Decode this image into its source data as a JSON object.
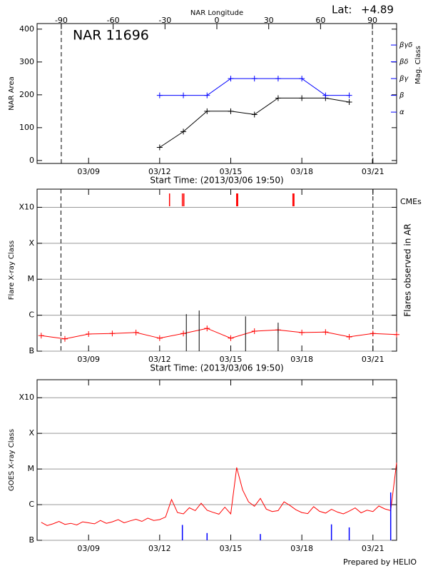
{
  "chart_data": [
    {
      "type": "line",
      "title": "NAR 11696",
      "lat_label": "Lat:",
      "lat_value": "+4.89",
      "x2label": "NAR Longitude",
      "xlabel": "Start Time: (2013/03/06 19:50)",
      "ylabel": "NAR Area",
      "y2label": "Mag. Class",
      "xlim": [
        "03/06 19:50",
        "03/22"
      ],
      "xticks": [
        "03/09",
        "03/12",
        "03/15",
        "03/18",
        "03/21"
      ],
      "x2lim": [
        -104,
        104
      ],
      "x2ticks": [
        -90,
        -60,
        -30,
        0,
        30,
        60,
        90
      ],
      "limb_lines": [
        -90,
        90
      ],
      "ylim": [
        -9,
        417
      ],
      "yticks": [
        0,
        100,
        200,
        300,
        400
      ],
      "y2lim": [
        -2.06,
        6.28
      ],
      "y2ticks": [
        {
          "value": 1,
          "label": "α"
        },
        {
          "value": 2,
          "label": "β"
        },
        {
          "value": 3,
          "label": "βγ"
        },
        {
          "value": 4,
          "label": "βδ"
        },
        {
          "value": 5,
          "label": "βγδ"
        }
      ],
      "y2color": "#0000ff",
      "x": [
        "03/12",
        "03/13",
        "03/14",
        "03/15",
        "03/16",
        "03/17",
        "03/18",
        "03/19",
        "03/20"
      ],
      "series": [
        {
          "color": "#000000",
          "marker": "+",
          "values": [
            40,
            88,
            150,
            150,
            140,
            190,
            190,
            190,
            178
          ]
        },
        {
          "color": "#0000ff",
          "marker": "+",
          "axis": "y2",
          "values": [
            2,
            2,
            2,
            3,
            3,
            3,
            3,
            2,
            2
          ]
        }
      ]
    },
    {
      "type": "event",
      "xlabel": "Start Time: (2013/03/06 19:50)",
      "ylabel": "Flare X-ray Class",
      "y2label": "Flares observed in AR",
      "cme_label": "CMEs",
      "xlim": [
        "03/06 19:50",
        "03/22"
      ],
      "xticks": [
        "03/09",
        "03/12",
        "03/15",
        "03/18",
        "03/21"
      ],
      "limb_lines": [
        "03/07 20:00",
        "03/21 00:00"
      ],
      "log_scale": true,
      "grid": true,
      "ylim": [
        1e-07,
        0.0032
      ],
      "yticks": [
        {
          "value": 1e-07,
          "label": "B"
        },
        {
          "value": 1e-06,
          "label": "C"
        },
        {
          "value": 1e-05,
          "label": "M"
        },
        {
          "value": 0.0001,
          "label": "X"
        },
        {
          "value": 0.001,
          "label": "X10"
        }
      ],
      "series": [
        {
          "color": "#ff0000",
          "marker": "+",
          "x": [
            "03/07",
            "03/08",
            "03/09",
            "03/10",
            "03/11",
            "03/12",
            "03/13",
            "03/14",
            "03/15",
            "03/16",
            "03/17",
            "03/18",
            "03/19",
            "03/20",
            "03/21",
            "03/22"
          ],
          "values": [
            2.7e-07,
            2.2e-07,
            3e-07,
            3.1e-07,
            3.3e-07,
            2.3e-07,
            3.1e-07,
            4.3e-07,
            2.3e-07,
            3.6e-07,
            3.9e-07,
            3.3e-07,
            3.4e-07,
            2.5e-07,
            3.1e-07,
            2.9e-07
          ]
        }
      ],
      "flares": {
        "color": "#000000",
        "x": [
          "03/13 03:00",
          "03/13 16:00",
          "03/15 15:00",
          "03/17 00:00"
        ],
        "values": [
          1.07e-06,
          1.35e-06,
          9.3e-07,
          6.2e-07
        ]
      },
      "cmes": {
        "color": "#ff0000",
        "x": [
          "03/12 10:00",
          "03/12 23:00",
          "03/13 00:30",
          "03/15 06:00",
          "03/15 07:00",
          "03/17 15:00",
          "03/17 16:00"
        ]
      }
    },
    {
      "type": "line",
      "ylabel": "GOES X-ray Class",
      "footer": "Prepared by HELIO",
      "xlim": [
        "03/06 19:50",
        "03/22"
      ],
      "xticks": [
        "03/09",
        "03/12",
        "03/15",
        "03/18",
        "03/21"
      ],
      "log_scale": true,
      "grid": true,
      "ylim": [
        1e-07,
        0.0032
      ],
      "yticks": [
        {
          "value": 1e-07,
          "label": "B"
        },
        {
          "value": 1e-06,
          "label": "C"
        },
        {
          "value": 1e-05,
          "label": "M"
        },
        {
          "value": 0.0001,
          "label": "X"
        },
        {
          "value": 0.001,
          "label": "X10"
        }
      ],
      "series": [
        {
          "color": "#ff0000",
          "x": [
            "03/07 00:00",
            "03/07 06:00",
            "03/07 12:00",
            "03/07 18:00",
            "03/08 00:00",
            "03/08 06:00",
            "03/08 12:00",
            "03/08 18:00",
            "03/09 00:00",
            "03/09 06:00",
            "03/09 12:00",
            "03/09 18:00",
            "03/10 00:00",
            "03/10 06:00",
            "03/10 12:00",
            "03/10 18:00",
            "03/11 00:00",
            "03/11 06:00",
            "03/11 12:00",
            "03/11 18:00",
            "03/12 00:00",
            "03/12 06:00",
            "03/12 12:00",
            "03/12 18:00",
            "03/13 00:00",
            "03/13 06:00",
            "03/13 12:00",
            "03/13 18:00",
            "03/14 00:00",
            "03/14 06:00",
            "03/14 12:00",
            "03/14 18:00",
            "03/15 00:00",
            "03/15 06:00",
            "03/15 12:00",
            "03/15 18:00",
            "03/16 00:00",
            "03/16 06:00",
            "03/16 12:00",
            "03/16 18:00",
            "03/17 00:00",
            "03/17 06:00",
            "03/17 12:00",
            "03/17 18:00",
            "03/18 00:00",
            "03/18 06:00",
            "03/18 12:00",
            "03/18 18:00",
            "03/19 00:00",
            "03/19 06:00",
            "03/19 12:00",
            "03/19 18:00",
            "03/20 00:00",
            "03/20 06:00",
            "03/20 12:00",
            "03/20 18:00",
            "03/21 00:00",
            "03/21 06:00",
            "03/21 12:00",
            "03/21 18:00",
            "03/22 00:00"
          ],
          "values": [
            3.2e-07,
            2.6e-07,
            2.9e-07,
            3.4e-07,
            2.8e-07,
            3e-07,
            2.7e-07,
            3.3e-07,
            3.1e-07,
            2.9e-07,
            3.6e-07,
            3e-07,
            3.3e-07,
            3.8e-07,
            3.1e-07,
            3.5e-07,
            3.9e-07,
            3.4e-07,
            4.2e-07,
            3.6e-07,
            3.8e-07,
            4.5e-07,
            1.4e-06,
            6e-07,
            5.5e-07,
            8.2e-07,
            6.8e-07,
            1.1e-06,
            7e-07,
            6.1e-07,
            5.4e-07,
            8.5e-07,
            5.5e-07,
            1.1e-05,
            2.6e-06,
            1.2e-06,
            9e-07,
            1.5e-06,
            7.5e-07,
            6.4e-07,
            6.8e-07,
            1.2e-06,
            9.5e-07,
            7.2e-07,
            6e-07,
            5.6e-07,
            8.8e-07,
            6.5e-07,
            5.8e-07,
            7.4e-07,
            6.2e-07,
            5.5e-07,
            6.6e-07,
            8.1e-07,
            5.9e-07,
            7e-07,
            6.4e-07,
            9.2e-07,
            7.6e-07,
            6.8e-07,
            1.5e-05
          ]
        },
        {
          "color": "#0000ff",
          "style": "spikes",
          "x": [
            "03/12 23:00",
            "03/14 00:00",
            "03/16 06:00",
            "03/19 06:00",
            "03/20 00:00",
            "03/21 18:00"
          ],
          "values": [
            2.7e-07,
            1.6e-07,
            1.5e-07,
            2.8e-07,
            2.3e-07,
            2.2e-06
          ]
        }
      ]
    }
  ]
}
